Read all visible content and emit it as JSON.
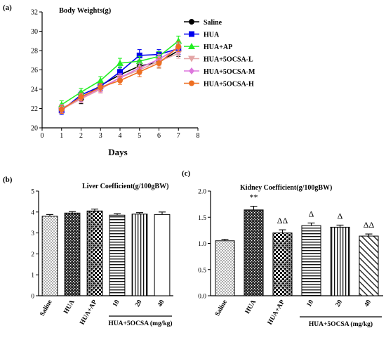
{
  "chart_data": [
    {
      "type": "line",
      "panel_label": "(a)",
      "title": "Body Weights(g)",
      "xlabel": "Days",
      "ylabel": "",
      "xlim": [
        0,
        8
      ],
      "ylim": [
        20,
        32
      ],
      "x_ticks": [
        "0",
        "1",
        "2",
        "3",
        "4",
        "5",
        "6",
        "7",
        "8"
      ],
      "y_ticks": [
        "20",
        "22",
        "24",
        "26",
        "28",
        "30",
        "32"
      ],
      "grid": false,
      "legend": "top-right",
      "x": [
        1,
        2,
        3,
        4,
        5,
        6,
        7
      ],
      "series": [
        {
          "name": "Saline",
          "color": "#000000",
          "marker": "circle",
          "values": [
            22.0,
            23.0,
            24.4,
            25.5,
            26.4,
            26.8,
            28.0
          ],
          "err": [
            0.4,
            0.5,
            0.4,
            0.5,
            0.6,
            0.6,
            0.6
          ]
        },
        {
          "name": "HUA",
          "color": "#0000ee",
          "marker": "square",
          "values": [
            21.8,
            23.4,
            24.3,
            25.8,
            27.5,
            27.6,
            28.2
          ],
          "err": [
            0.4,
            0.4,
            0.4,
            0.5,
            0.6,
            0.5,
            0.6
          ]
        },
        {
          "name": "HUA+AP",
          "color": "#22ee22",
          "marker": "triangle",
          "values": [
            22.4,
            23.7,
            24.9,
            26.7,
            26.9,
            27.4,
            29.0
          ],
          "err": [
            0.4,
            0.4,
            0.4,
            0.5,
            0.5,
            0.5,
            0.5
          ]
        },
        {
          "name": "HUA+5OCSA-L",
          "color": "#e3a6a6",
          "marker": "tri-down",
          "values": [
            21.9,
            23.0,
            24.0,
            25.2,
            26.0,
            26.9,
            27.7
          ],
          "err": [
            0.4,
            0.4,
            0.4,
            0.4,
            0.5,
            0.5,
            0.5
          ]
        },
        {
          "name": "HUA+5OCSA-M",
          "color": "#dd77dd",
          "marker": "diamond",
          "values": [
            22.0,
            23.1,
            24.1,
            25.2,
            26.2,
            27.1,
            28.3
          ],
          "err": [
            0.4,
            0.4,
            0.4,
            0.4,
            0.5,
            0.5,
            0.5
          ]
        },
        {
          "name": "HUA+5OCSA-H",
          "color": "#ee6f22",
          "marker": "circle",
          "values": [
            21.9,
            23.2,
            24.2,
            24.9,
            25.8,
            26.7,
            28.4
          ],
          "err": [
            0.4,
            0.4,
            0.4,
            0.4,
            0.5,
            0.5,
            0.5
          ]
        }
      ]
    },
    {
      "type": "bar",
      "panel_label": "(b)",
      "title": "Liver Coefficient(g/100gBW)",
      "xlabel": "",
      "ylabel": "",
      "ylim": [
        0,
        5
      ],
      "y_ticks": [
        "0",
        "1",
        "2",
        "3",
        "4",
        "5"
      ],
      "categories": [
        "Saline",
        "HUA",
        "HUA+AP",
        "10",
        "20",
        "40"
      ],
      "values": [
        3.8,
        3.95,
        4.05,
        3.85,
        3.9,
        3.88
      ],
      "err": [
        0.08,
        0.07,
        0.09,
        0.07,
        0.07,
        0.12
      ],
      "patterns": [
        "dots",
        "dark-check",
        "check",
        "hlines",
        "vlines",
        "blank"
      ],
      "group_label": "HUA+5OCSA  (mg/kg)"
    },
    {
      "type": "bar",
      "panel_label": "(c)",
      "title": "Kidney Coefficient(g/100gBW)",
      "xlabel": "",
      "ylabel": "",
      "ylim": [
        0,
        2.0
      ],
      "y_ticks": [
        "0.0",
        "0.5",
        "1.0",
        "1.5",
        "2.0"
      ],
      "categories": [
        "Saline",
        "HUA",
        "HUA+AP",
        "10",
        "20",
        "40"
      ],
      "values": [
        1.05,
        1.64,
        1.2,
        1.34,
        1.31,
        1.14
      ],
      "err": [
        0.03,
        0.07,
        0.06,
        0.05,
        0.04,
        0.04
      ],
      "annotations": [
        "",
        "**",
        "ΔΔ",
        "Δ",
        "Δ",
        "ΔΔ"
      ],
      "patterns": [
        "dots",
        "dark-check",
        "check",
        "hlines",
        "vlines",
        "diag"
      ],
      "group_label": "HUA+5OCSA  (mg/kg)"
    }
  ]
}
